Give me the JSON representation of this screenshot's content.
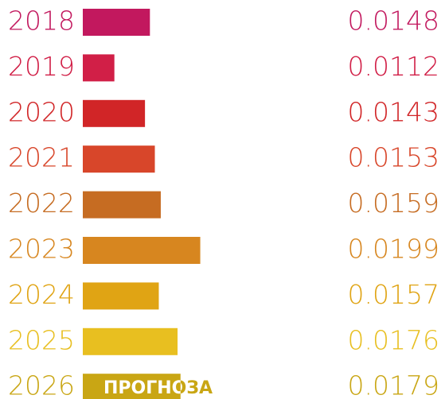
{
  "chart_data": {
    "type": "bar",
    "orientation": "horizontal",
    "categories": [
      "2018",
      "2019",
      "2020",
      "2021",
      "2022",
      "2023",
      "2024",
      "2025",
      "2026"
    ],
    "values": [
      0.0148,
      0.0112,
      0.0143,
      0.0153,
      0.0159,
      0.0199,
      0.0157,
      0.0176,
      0.0179
    ],
    "colors": [
      "#c2185e",
      "#d11f47",
      "#d12527",
      "#d8462a",
      "#c66c22",
      "#d7861f",
      "#e0a414",
      "#e8bf20",
      "#c9a614"
    ],
    "xlim": [
      0.008,
      0.0205
    ],
    "annotation": "ПРОГНОЗА"
  }
}
